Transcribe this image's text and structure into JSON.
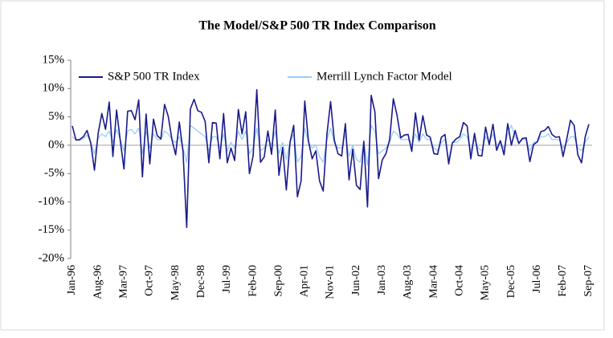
{
  "chart_data": {
    "type": "line",
    "title": "The Model/S&P 500 TR Index Comparison",
    "categories": [
      "Jan-96",
      null,
      null,
      null,
      null,
      null,
      null,
      "Aug-96",
      null,
      null,
      null,
      null,
      null,
      null,
      "Mar-97",
      null,
      null,
      null,
      null,
      null,
      null,
      "Oct-97",
      null,
      null,
      null,
      null,
      null,
      null,
      "May-98",
      null,
      null,
      null,
      null,
      null,
      null,
      "Dec-98",
      null,
      null,
      null,
      null,
      null,
      null,
      "Jul-99",
      null,
      null,
      null,
      null,
      null,
      null,
      "Feb-00",
      null,
      null,
      null,
      null,
      null,
      null,
      "Sep-00",
      null,
      null,
      null,
      null,
      null,
      null,
      "Apr-01",
      null,
      null,
      null,
      null,
      null,
      null,
      "Nov-01",
      null,
      null,
      null,
      null,
      null,
      null,
      "Jun-02",
      null,
      null,
      null,
      null,
      null,
      null,
      "Jan-03",
      null,
      null,
      null,
      null,
      null,
      null,
      "Aug-03",
      null,
      null,
      null,
      null,
      null,
      null,
      "Mar-04",
      null,
      null,
      null,
      null,
      null,
      null,
      "Oct-04",
      null,
      null,
      null,
      null,
      null,
      null,
      "May-05",
      null,
      null,
      null,
      null,
      null,
      null,
      "Dec-05",
      null,
      null,
      null,
      null,
      null,
      null,
      "Jul-06",
      null,
      null,
      null,
      null,
      null,
      null,
      "Feb-07",
      null,
      null,
      null,
      null,
      null,
      null,
      "Sep-07"
    ],
    "series": [
      {
        "name": "S&P 500 TR Index",
        "color": "#1a1a8c",
        "values": [
          3.4,
          0.9,
          1.0,
          1.5,
          2.6,
          0.4,
          -4.4,
          2.1,
          5.6,
          2.8,
          7.6,
          -2.0,
          6.2,
          0.8,
          -4.2,
          6.0,
          6.1,
          4.5,
          8.0,
          -5.6,
          5.5,
          -3.3,
          4.6,
          1.7,
          1.1,
          7.2,
          5.1,
          1.0,
          -1.7,
          4.1,
          -1.1,
          -14.5,
          6.4,
          8.1,
          6.1,
          5.8,
          4.2,
          -3.1,
          4.0,
          3.9,
          -2.4,
          5.6,
          -3.1,
          -0.5,
          -2.7,
          6.3,
          2.0,
          5.9,
          -5.0,
          -1.9,
          9.8,
          -3.0,
          -2.1,
          2.5,
          -1.6,
          6.2,
          -5.3,
          -0.4,
          -7.9,
          0.5,
          3.5,
          -9.1,
          -6.3,
          7.8,
          0.7,
          -2.4,
          -1.0,
          -6.3,
          -8.1,
          1.9,
          7.7,
          0.9,
          -1.5,
          -1.9,
          3.8,
          -6.1,
          -0.7,
          -7.1,
          -7.8,
          0.7,
          -10.9,
          8.8,
          5.9,
          -5.9,
          -2.6,
          -1.5,
          1.0,
          8.2,
          5.3,
          1.3,
          1.8,
          1.9,
          -1.1,
          5.7,
          0.9,
          5.2,
          1.8,
          1.4,
          -1.5,
          -1.6,
          1.4,
          1.9,
          -3.3,
          0.4,
          1.1,
          1.5,
          4.0,
          3.4,
          -2.4,
          2.1,
          -1.8,
          -1.9,
          3.2,
          0.1,
          3.7,
          -0.9,
          0.8,
          -1.7,
          3.8,
          0.0,
          2.6,
          0.3,
          1.2,
          1.3,
          -2.9,
          0.1,
          0.6,
          2.4,
          2.6,
          3.3,
          1.9,
          1.4,
          1.5,
          -2.0,
          1.1,
          4.4,
          3.5,
          -1.7,
          -3.1,
          1.5,
          3.7
        ]
      },
      {
        "name": "Merrill Lynch Factor Model",
        "color": "#99ccff",
        "values": [
          1.5,
          1.0,
          0.8,
          1.2,
          1.8,
          0.5,
          -1.5,
          1.2,
          2.0,
          1.5,
          2.5,
          0.5,
          2.8,
          1.0,
          -1.0,
          2.5,
          2.8,
          2.0,
          3.0,
          -1.5,
          2.5,
          -0.5,
          2.0,
          1.0,
          1.0,
          2.5,
          2.0,
          1.0,
          0.5,
          1.5,
          -0.5,
          -3.0,
          3.5,
          3.0,
          2.5,
          2.0,
          1.5,
          -1.0,
          1.5,
          1.5,
          -0.5,
          2.0,
          -1.0,
          0.5,
          -0.5,
          2.5,
          1.0,
          2.5,
          -1.5,
          -0.5,
          3.0,
          -1.0,
          -0.5,
          1.0,
          0.0,
          2.5,
          -1.5,
          0.5,
          -2.5,
          0.5,
          2.0,
          -3.0,
          -2.0,
          3.0,
          0.5,
          -0.5,
          0.0,
          -2.0,
          -3.0,
          1.0,
          3.0,
          0.5,
          -0.5,
          -0.5,
          2.0,
          -2.0,
          0.0,
          -2.5,
          -3.0,
          0.5,
          -3.5,
          3.5,
          2.5,
          -1.5,
          -1.0,
          -0.5,
          0.5,
          2.5,
          2.0,
          1.0,
          1.0,
          1.0,
          0.0,
          2.0,
          0.5,
          2.0,
          1.0,
          1.0,
          -0.5,
          -1.0,
          0.5,
          1.0,
          -2.5,
          0.5,
          0.5,
          1.0,
          2.0,
          1.5,
          -1.0,
          1.0,
          -0.5,
          -1.0,
          1.5,
          0.5,
          2.0,
          0.0,
          0.5,
          -0.5,
          2.0,
          3.5,
          1.5,
          0.5,
          1.0,
          1.0,
          -1.0,
          0.5,
          0.5,
          1.5,
          1.5,
          2.0,
          1.0,
          1.0,
          1.0,
          -0.5,
          0.5,
          1.5,
          1.5,
          -0.5,
          -1.0,
          0.5,
          1.5
        ]
      }
    ],
    "ylim": [
      -20,
      15
    ],
    "yticks": [
      {
        "value": 15,
        "label": "15%"
      },
      {
        "value": 10,
        "label": "10%"
      },
      {
        "value": 5,
        "label": "5%"
      },
      {
        "value": 0,
        "label": "0%"
      },
      {
        "value": -5,
        "label": "-5%"
      },
      {
        "value": -10,
        "label": "-10%"
      },
      {
        "value": -15,
        "label": "-15%"
      },
      {
        "value": -20,
        "label": "-20%"
      }
    ],
    "legend": "top"
  }
}
